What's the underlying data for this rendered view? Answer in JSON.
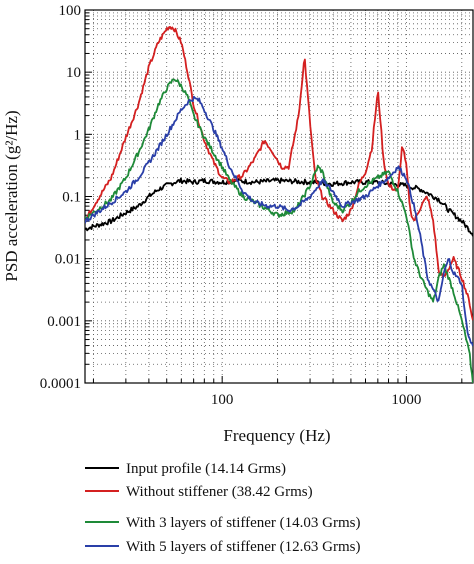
{
  "chart_data": {
    "type": "line",
    "title": "",
    "xlabel": "Frequency (Hz)",
    "ylabel": "PSD acceleration (g²/Hz)",
    "xscale": "log",
    "yscale": "log",
    "xlim": [
      18,
      2300
    ],
    "ylim": [
      0.0001,
      100
    ],
    "grid": "dotted",
    "legend_position": "bottom",
    "x_tick_labels": [
      "100",
      "1000"
    ],
    "y_tick_labels": [
      "100",
      "10",
      "1",
      "0.1",
      "0.01",
      "0.001",
      "0.0001"
    ],
    "series": [
      {
        "name": "Input profile (14.14 Grms)",
        "color": "#000000",
        "x": [
          18,
          20,
          25,
          30,
          35,
          40,
          45,
          50,
          55,
          60,
          70,
          80,
          100,
          120,
          150,
          200,
          300,
          400,
          500,
          700,
          800,
          1000,
          1200,
          1500,
          1700,
          2000,
          2300
        ],
        "y": [
          0.03,
          0.033,
          0.04,
          0.055,
          0.07,
          0.1,
          0.13,
          0.15,
          0.17,
          0.18,
          0.17,
          0.18,
          0.17,
          0.18,
          0.17,
          0.18,
          0.17,
          0.16,
          0.17,
          0.17,
          0.16,
          0.15,
          0.13,
          0.09,
          0.06,
          0.04,
          0.025
        ]
      },
      {
        "name": "Without stiffener (38.42 Grms)",
        "color": "#d42020",
        "x": [
          18,
          20,
          25,
          30,
          35,
          40,
          45,
          50,
          52,
          55,
          60,
          65,
          70,
          80,
          90,
          100,
          110,
          130,
          150,
          170,
          190,
          210,
          230,
          260,
          280,
          300,
          320,
          350,
          400,
          450,
          500,
          550,
          600,
          650,
          700,
          720,
          750,
          800,
          900,
          950,
          1000,
          1050,
          1100,
          1200,
          1300,
          1400,
          1500,
          1600,
          1700,
          1800,
          2000,
          2200,
          2300
        ],
        "y": [
          0.04,
          0.07,
          0.2,
          0.9,
          3,
          12,
          30,
          50,
          55,
          50,
          30,
          10,
          3,
          0.8,
          0.35,
          0.2,
          0.17,
          0.22,
          0.4,
          0.8,
          0.5,
          0.3,
          0.3,
          2,
          18,
          1.5,
          0.2,
          0.1,
          0.06,
          0.04,
          0.06,
          0.15,
          0.25,
          0.6,
          5,
          2,
          0.4,
          0.15,
          0.12,
          0.7,
          0.3,
          0.06,
          0.04,
          0.07,
          0.1,
          0.04,
          0.006,
          0.005,
          0.007,
          0.01,
          0.005,
          0.002,
          0.001
        ]
      },
      {
        "name": "With 3 layers of stiffener (14.03 Grms)",
        "color": "#1e8a38",
        "x": [
          18,
          20,
          25,
          30,
          35,
          40,
          45,
          50,
          55,
          60,
          65,
          70,
          80,
          90,
          100,
          110,
          130,
          150,
          180,
          200,
          250,
          300,
          330,
          350,
          380,
          400,
          450,
          500,
          550,
          600,
          700,
          800,
          900,
          1000,
          1100,
          1200,
          1300,
          1400,
          1500,
          1600,
          1800,
          2000,
          2200,
          2300
        ],
        "y": [
          0.045,
          0.055,
          0.09,
          0.2,
          0.5,
          1.2,
          3,
          5.5,
          8,
          6,
          4,
          2,
          0.9,
          0.5,
          0.3,
          0.18,
          0.1,
          0.08,
          0.06,
          0.05,
          0.06,
          0.15,
          0.3,
          0.25,
          0.12,
          0.08,
          0.06,
          0.08,
          0.12,
          0.15,
          0.2,
          0.25,
          0.12,
          0.05,
          0.01,
          0.005,
          0.003,
          0.002,
          0.005,
          0.008,
          0.003,
          0.001,
          0.0003,
          0.0001
        ]
      },
      {
        "name": "With 5 layers of stiffener (12.63 Grms)",
        "color": "#2a3fa8",
        "x": [
          18,
          20,
          25,
          30,
          35,
          40,
          45,
          50,
          55,
          60,
          65,
          70,
          75,
          80,
          90,
          100,
          110,
          130,
          150,
          180,
          200,
          230,
          260,
          300,
          350,
          400,
          450,
          500,
          600,
          700,
          800,
          900,
          1000,
          1100,
          1200,
          1300,
          1500,
          1600,
          1700,
          1800,
          2000,
          2100,
          2200,
          2300
        ],
        "y": [
          0.04,
          0.05,
          0.08,
          0.12,
          0.2,
          0.35,
          0.6,
          1,
          1.6,
          2.5,
          3.3,
          3.8,
          3.5,
          2.5,
          1.2,
          0.6,
          0.3,
          0.12,
          0.08,
          0.07,
          0.07,
          0.06,
          0.07,
          0.1,
          0.18,
          0.12,
          0.07,
          0.08,
          0.1,
          0.15,
          0.2,
          0.3,
          0.2,
          0.07,
          0.02,
          0.005,
          0.002,
          0.006,
          0.01,
          0.006,
          0.004,
          0.001,
          0.0005,
          0.0004
        ]
      }
    ]
  }
}
